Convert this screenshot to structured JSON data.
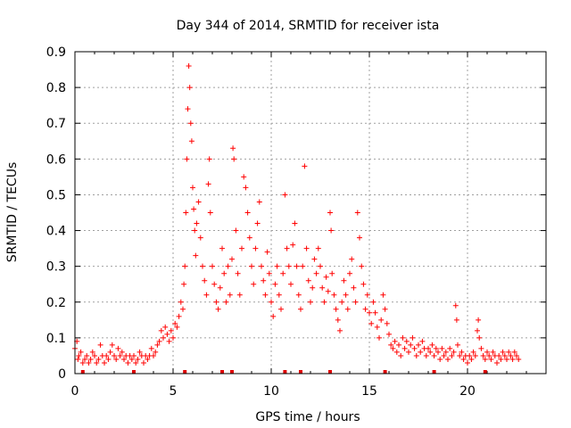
{
  "chart_data": {
    "type": "scatter",
    "title": "Day 344 of 2014, SRMTID for receiver ista",
    "xlabel": "GPS time / hours",
    "ylabel": "SRMTID / TECUs",
    "xlim": [
      0,
      24
    ],
    "ylim": [
      0,
      0.9
    ],
    "x_ticks": [
      0,
      5,
      10,
      15,
      20
    ],
    "y_ticks": [
      0,
      0.1,
      0.2,
      0.3,
      0.4,
      0.5,
      0.6,
      0.7,
      0.8,
      0.9
    ],
    "x_tick_labels": [
      "0",
      "5",
      "10",
      "15",
      "20"
    ],
    "y_tick_labels": [
      "0",
      "0.1",
      "0.2",
      "0.3",
      "0.4",
      "0.5",
      "0.6",
      "0.7",
      "0.8",
      "0.9"
    ],
    "grid": true,
    "marker": "+",
    "color": "#ff0000",
    "bottom_markers_x": [
      0.4,
      3.0,
      5.6,
      7.5,
      8.0,
      10.7,
      11.5,
      13.0,
      15.8,
      18.3,
      20.9
    ],
    "series": [
      {
        "name": "SRMTID",
        "points": [
          [
            0.0,
            0.07
          ],
          [
            0.1,
            0.09
          ],
          [
            0.15,
            0.04
          ],
          [
            0.2,
            0.05
          ],
          [
            0.3,
            0.06
          ],
          [
            0.4,
            0.03
          ],
          [
            0.5,
            0.04
          ],
          [
            0.6,
            0.05
          ],
          [
            0.7,
            0.03
          ],
          [
            0.8,
            0.04
          ],
          [
            0.9,
            0.06
          ],
          [
            1.0,
            0.05
          ],
          [
            1.1,
            0.03
          ],
          [
            1.2,
            0.04
          ],
          [
            1.3,
            0.08
          ],
          [
            1.4,
            0.05
          ],
          [
            1.5,
            0.03
          ],
          [
            1.6,
            0.05
          ],
          [
            1.7,
            0.04
          ],
          [
            1.8,
            0.06
          ],
          [
            1.9,
            0.08
          ],
          [
            2.0,
            0.05
          ],
          [
            2.1,
            0.04
          ],
          [
            2.2,
            0.07
          ],
          [
            2.3,
            0.05
          ],
          [
            2.4,
            0.06
          ],
          [
            2.5,
            0.04
          ],
          [
            2.6,
            0.05
          ],
          [
            2.7,
            0.03
          ],
          [
            2.8,
            0.05
          ],
          [
            2.9,
            0.04
          ],
          [
            3.0,
            0.05
          ],
          [
            3.1,
            0.03
          ],
          [
            3.2,
            0.04
          ],
          [
            3.3,
            0.06
          ],
          [
            3.4,
            0.05
          ],
          [
            3.5,
            0.03
          ],
          [
            3.6,
            0.05
          ],
          [
            3.7,
            0.04
          ],
          [
            3.8,
            0.05
          ],
          [
            3.9,
            0.07
          ],
          [
            4.0,
            0.05
          ],
          [
            4.1,
            0.06
          ],
          [
            4.2,
            0.08
          ],
          [
            4.3,
            0.09
          ],
          [
            4.4,
            0.12
          ],
          [
            4.5,
            0.1
          ],
          [
            4.6,
            0.13
          ],
          [
            4.7,
            0.11
          ],
          [
            4.8,
            0.09
          ],
          [
            4.9,
            0.12
          ],
          [
            5.0,
            0.1
          ],
          [
            5.1,
            0.14
          ],
          [
            5.2,
            0.13
          ],
          [
            5.3,
            0.16
          ],
          [
            5.4,
            0.2
          ],
          [
            5.5,
            0.18
          ],
          [
            5.55,
            0.25
          ],
          [
            5.6,
            0.3
          ],
          [
            5.65,
            0.45
          ],
          [
            5.7,
            0.6
          ],
          [
            5.75,
            0.74
          ],
          [
            5.8,
            0.86
          ],
          [
            5.85,
            0.8
          ],
          [
            5.9,
            0.7
          ],
          [
            5.95,
            0.65
          ],
          [
            6.0,
            0.52
          ],
          [
            6.05,
            0.46
          ],
          [
            6.1,
            0.4
          ],
          [
            6.15,
            0.33
          ],
          [
            6.2,
            0.42
          ],
          [
            6.3,
            0.48
          ],
          [
            6.4,
            0.38
          ],
          [
            6.5,
            0.3
          ],
          [
            6.6,
            0.26
          ],
          [
            6.7,
            0.22
          ],
          [
            6.8,
            0.53
          ],
          [
            6.85,
            0.6
          ],
          [
            6.9,
            0.45
          ],
          [
            7.0,
            0.3
          ],
          [
            7.1,
            0.25
          ],
          [
            7.2,
            0.2
          ],
          [
            7.3,
            0.18
          ],
          [
            7.4,
            0.24
          ],
          [
            7.5,
            0.35
          ],
          [
            7.6,
            0.28
          ],
          [
            7.7,
            0.2
          ],
          [
            7.8,
            0.3
          ],
          [
            7.9,
            0.22
          ],
          [
            8.0,
            0.32
          ],
          [
            8.05,
            0.63
          ],
          [
            8.1,
            0.6
          ],
          [
            8.2,
            0.4
          ],
          [
            8.3,
            0.28
          ],
          [
            8.4,
            0.22
          ],
          [
            8.5,
            0.35
          ],
          [
            8.6,
            0.55
          ],
          [
            8.7,
            0.52
          ],
          [
            8.8,
            0.45
          ],
          [
            8.9,
            0.38
          ],
          [
            9.0,
            0.3
          ],
          [
            9.1,
            0.25
          ],
          [
            9.2,
            0.35
          ],
          [
            9.3,
            0.42
          ],
          [
            9.4,
            0.48
          ],
          [
            9.5,
            0.3
          ],
          [
            9.6,
            0.26
          ],
          [
            9.7,
            0.22
          ],
          [
            9.8,
            0.34
          ],
          [
            9.9,
            0.28
          ],
          [
            10.0,
            0.2
          ],
          [
            10.1,
            0.16
          ],
          [
            10.2,
            0.25
          ],
          [
            10.3,
            0.3
          ],
          [
            10.4,
            0.22
          ],
          [
            10.5,
            0.18
          ],
          [
            10.6,
            0.28
          ],
          [
            10.7,
            0.5
          ],
          [
            10.8,
            0.35
          ],
          [
            10.9,
            0.3
          ],
          [
            11.0,
            0.25
          ],
          [
            11.1,
            0.36
          ],
          [
            11.2,
            0.42
          ],
          [
            11.3,
            0.3
          ],
          [
            11.4,
            0.22
          ],
          [
            11.5,
            0.18
          ],
          [
            11.6,
            0.3
          ],
          [
            11.7,
            0.58
          ],
          [
            11.8,
            0.35
          ],
          [
            11.9,
            0.26
          ],
          [
            12.0,
            0.2
          ],
          [
            12.1,
            0.24
          ],
          [
            12.2,
            0.32
          ],
          [
            12.3,
            0.28
          ],
          [
            12.4,
            0.35
          ],
          [
            12.5,
            0.3
          ],
          [
            12.6,
            0.24
          ],
          [
            12.7,
            0.2
          ],
          [
            12.8,
            0.27
          ],
          [
            12.9,
            0.23
          ],
          [
            13.0,
            0.45
          ],
          [
            13.05,
            0.4
          ],
          [
            13.1,
            0.28
          ],
          [
            13.2,
            0.22
          ],
          [
            13.3,
            0.18
          ],
          [
            13.4,
            0.15
          ],
          [
            13.5,
            0.12
          ],
          [
            13.6,
            0.2
          ],
          [
            13.7,
            0.26
          ],
          [
            13.8,
            0.22
          ],
          [
            13.9,
            0.18
          ],
          [
            14.0,
            0.28
          ],
          [
            14.1,
            0.32
          ],
          [
            14.2,
            0.24
          ],
          [
            14.3,
            0.2
          ],
          [
            14.4,
            0.45
          ],
          [
            14.5,
            0.38
          ],
          [
            14.6,
            0.3
          ],
          [
            14.7,
            0.25
          ],
          [
            14.8,
            0.18
          ],
          [
            14.9,
            0.22
          ],
          [
            15.0,
            0.17
          ],
          [
            15.1,
            0.14
          ],
          [
            15.2,
            0.2
          ],
          [
            15.3,
            0.17
          ],
          [
            15.4,
            0.13
          ],
          [
            15.5,
            0.1
          ],
          [
            15.6,
            0.15
          ],
          [
            15.7,
            0.22
          ],
          [
            15.8,
            0.18
          ],
          [
            15.9,
            0.14
          ],
          [
            16.0,
            0.11
          ],
          [
            16.1,
            0.08
          ],
          [
            16.2,
            0.07
          ],
          [
            16.3,
            0.09
          ],
          [
            16.4,
            0.06
          ],
          [
            16.5,
            0.08
          ],
          [
            16.6,
            0.05
          ],
          [
            16.7,
            0.1
          ],
          [
            16.8,
            0.07
          ],
          [
            16.9,
            0.09
          ],
          [
            17.0,
            0.06
          ],
          [
            17.1,
            0.08
          ],
          [
            17.2,
            0.1
          ],
          [
            17.3,
            0.07
          ],
          [
            17.4,
            0.05
          ],
          [
            17.5,
            0.08
          ],
          [
            17.6,
            0.06
          ],
          [
            17.7,
            0.09
          ],
          [
            17.8,
            0.07
          ],
          [
            17.9,
            0.05
          ],
          [
            18.0,
            0.07
          ],
          [
            18.1,
            0.06
          ],
          [
            18.2,
            0.08
          ],
          [
            18.3,
            0.05
          ],
          [
            18.4,
            0.07
          ],
          [
            18.5,
            0.06
          ],
          [
            18.6,
            0.04
          ],
          [
            18.7,
            0.07
          ],
          [
            18.8,
            0.05
          ],
          [
            18.9,
            0.06
          ],
          [
            19.0,
            0.04
          ],
          [
            19.1,
            0.07
          ],
          [
            19.2,
            0.05
          ],
          [
            19.3,
            0.06
          ],
          [
            19.4,
            0.19
          ],
          [
            19.45,
            0.15
          ],
          [
            19.5,
            0.08
          ],
          [
            19.6,
            0.05
          ],
          [
            19.7,
            0.06
          ],
          [
            19.8,
            0.04
          ],
          [
            19.9,
            0.05
          ],
          [
            20.0,
            0.03
          ],
          [
            20.1,
            0.05
          ],
          [
            20.2,
            0.04
          ],
          [
            20.3,
            0.06
          ],
          [
            20.4,
            0.05
          ],
          [
            20.5,
            0.12
          ],
          [
            20.55,
            0.15
          ],
          [
            20.6,
            0.1
          ],
          [
            20.7,
            0.07
          ],
          [
            20.8,
            0.05
          ],
          [
            20.9,
            0.04
          ],
          [
            21.0,
            0.06
          ],
          [
            21.1,
            0.05
          ],
          [
            21.2,
            0.04
          ],
          [
            21.3,
            0.06
          ],
          [
            21.4,
            0.05
          ],
          [
            21.5,
            0.03
          ],
          [
            21.6,
            0.05
          ],
          [
            21.7,
            0.04
          ],
          [
            21.8,
            0.06
          ],
          [
            21.9,
            0.05
          ],
          [
            22.0,
            0.04
          ],
          [
            22.1,
            0.06
          ],
          [
            22.2,
            0.05
          ],
          [
            22.3,
            0.04
          ],
          [
            22.4,
            0.06
          ],
          [
            22.5,
            0.05
          ],
          [
            22.6,
            0.04
          ]
        ]
      }
    ]
  }
}
